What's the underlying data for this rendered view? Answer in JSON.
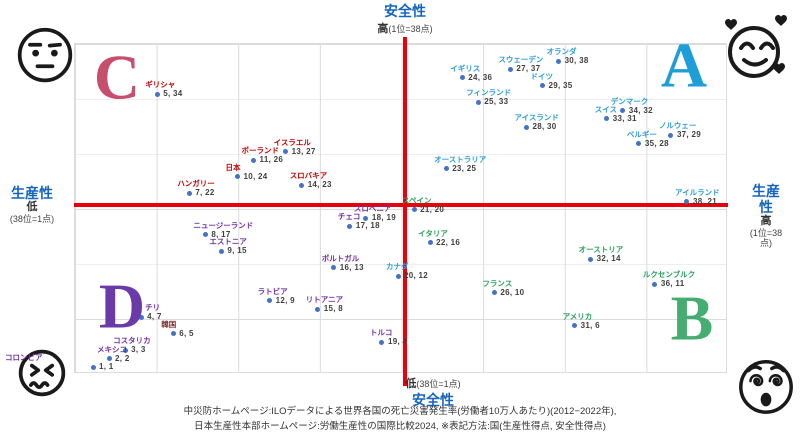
{
  "colors": {
    "axis_red": "#E8000B",
    "grid": "#DCDCDC",
    "dot_blue": "#4472C4",
    "value_text": "#404040",
    "axis_title_blue": "#1565C0",
    "label_blue": "#2E9BD9",
    "label_red": "#C00000",
    "label_green": "#28A05C",
    "label_purple": "#7030A0",
    "label_dark_red": "#7B3030"
  },
  "axes": {
    "top": {
      "title": "安全性",
      "level": "高",
      "note": "(1位=38点)"
    },
    "bottom": {
      "level": "低",
      "note": "(38位=1点)",
      "title": "安全性"
    },
    "left": {
      "title": "生産性",
      "level": "低",
      "note": "(38位=1点)"
    },
    "right": {
      "title": "生産性",
      "level": "高",
      "note": "(1位=38点)"
    }
  },
  "quadrant_letters": [
    {
      "letter": "C",
      "color": "#C84E6E"
    },
    {
      "letter": "A",
      "color": "#1E9ED9"
    },
    {
      "letter": "D",
      "color": "#6A3BA8"
    },
    {
      "letter": "B",
      "color": "#45AD71"
    }
  ],
  "footer": {
    "line1": "中災防ホームページ:ILOデータによる世界各国の死亡災害発生率(労働者10万人あたり)(2012−2022年),",
    "line2": "日本生産性本部ホームページ:労働生産性の国際比較2024, ※表記方法:国(生産性得点, 安全性得点)"
  },
  "chart_data": {
    "type": "scatter",
    "xlabel": "生産性",
    "ylabel": "安全性",
    "x_range": [
      1,
      38
    ],
    "y_range": [
      1,
      38
    ],
    "x_note": "低(38位=1点) → 高(1位=38点)",
    "y_note": "低(38位=1点) → 高(1位=38点)",
    "notation": "国(生産性得点, 安全性得点)",
    "series": [
      {
        "name": "blue",
        "color_key": "label_blue",
        "points": [
          {
            "name": "オランダ",
            "x": 30,
            "y": 38
          },
          {
            "name": "スウェーデン",
            "x": 27,
            "y": 37
          },
          {
            "name": "イギリス",
            "x": 24,
            "y": 36
          },
          {
            "name": "ドイツ",
            "x": 29,
            "y": 35
          },
          {
            "name": "フィンランド",
            "x": 25,
            "y": 33
          },
          {
            "name": "デンマーク",
            "x": 34,
            "y": 32
          },
          {
            "name": "スイス",
            "x": 33,
            "y": 31
          },
          {
            "name": "アイスランド",
            "x": 28,
            "y": 30
          },
          {
            "name": "ノルウェー",
            "x": 37,
            "y": 29
          },
          {
            "name": "ベルギー",
            "x": 35,
            "y": 28
          },
          {
            "name": "オーストラリア",
            "x": 23,
            "y": 25
          },
          {
            "name": "アイルランド",
            "x": 38,
            "y": 21
          },
          {
            "name": "カナダ",
            "x": 20,
            "y": 12
          }
        ]
      },
      {
        "name": "red",
        "color_key": "label_red",
        "points": [
          {
            "name": "ギリシャ",
            "x": 5,
            "y": 34
          },
          {
            "name": "イスラエル",
            "x": 13,
            "y": 27
          },
          {
            "name": "ポーランド",
            "x": 11,
            "y": 26
          },
          {
            "name": "日本",
            "x": 10,
            "y": 24
          },
          {
            "name": "スロバキア",
            "x": 14,
            "y": 23
          },
          {
            "name": "ハンガリー",
            "x": 7,
            "y": 22
          }
        ]
      },
      {
        "name": "green",
        "color_key": "label_green",
        "points": [
          {
            "name": "スペイン",
            "x": 21,
            "y": 20
          },
          {
            "name": "イタリア",
            "x": 22,
            "y": 16
          },
          {
            "name": "オーストリア",
            "x": 32,
            "y": 14
          },
          {
            "name": "ルクセンブルク",
            "x": 36,
            "y": 11
          },
          {
            "name": "フランス",
            "x": 26,
            "y": 10
          },
          {
            "name": "アメリカ",
            "x": 31,
            "y": 6
          }
        ]
      },
      {
        "name": "purple",
        "color_key": "label_purple",
        "points": [
          {
            "name": "スロベニア",
            "x": 18,
            "y": 19
          },
          {
            "name": "チェコ",
            "x": 17,
            "y": 18
          },
          {
            "name": "ニュージーランド",
            "x": 8,
            "y": 17
          },
          {
            "name": "エストニア",
            "x": 9,
            "y": 15
          },
          {
            "name": "ポルトガル",
            "x": 16,
            "y": 13
          },
          {
            "name": "ラトビア",
            "x": 12,
            "y": 9
          },
          {
            "name": "リトアニア",
            "x": 15,
            "y": 8
          },
          {
            "name": "チリ",
            "x": 4,
            "y": 7,
            "lx": 4
          },
          {
            "name": "トルコ",
            "x": 19,
            "y": 4
          },
          {
            "name": "コスタリカ",
            "x": 3,
            "y": 3
          },
          {
            "name": "メキシコ",
            "x": 2,
            "y": 2
          },
          {
            "name": "コロンビア",
            "x": 1,
            "y": 1,
            "lx": -88
          }
        ]
      },
      {
        "name": "dark",
        "color_key": "label_dark_red",
        "points": [
          {
            "name": "韓国",
            "x": 6,
            "y": 5
          }
        ]
      }
    ]
  }
}
